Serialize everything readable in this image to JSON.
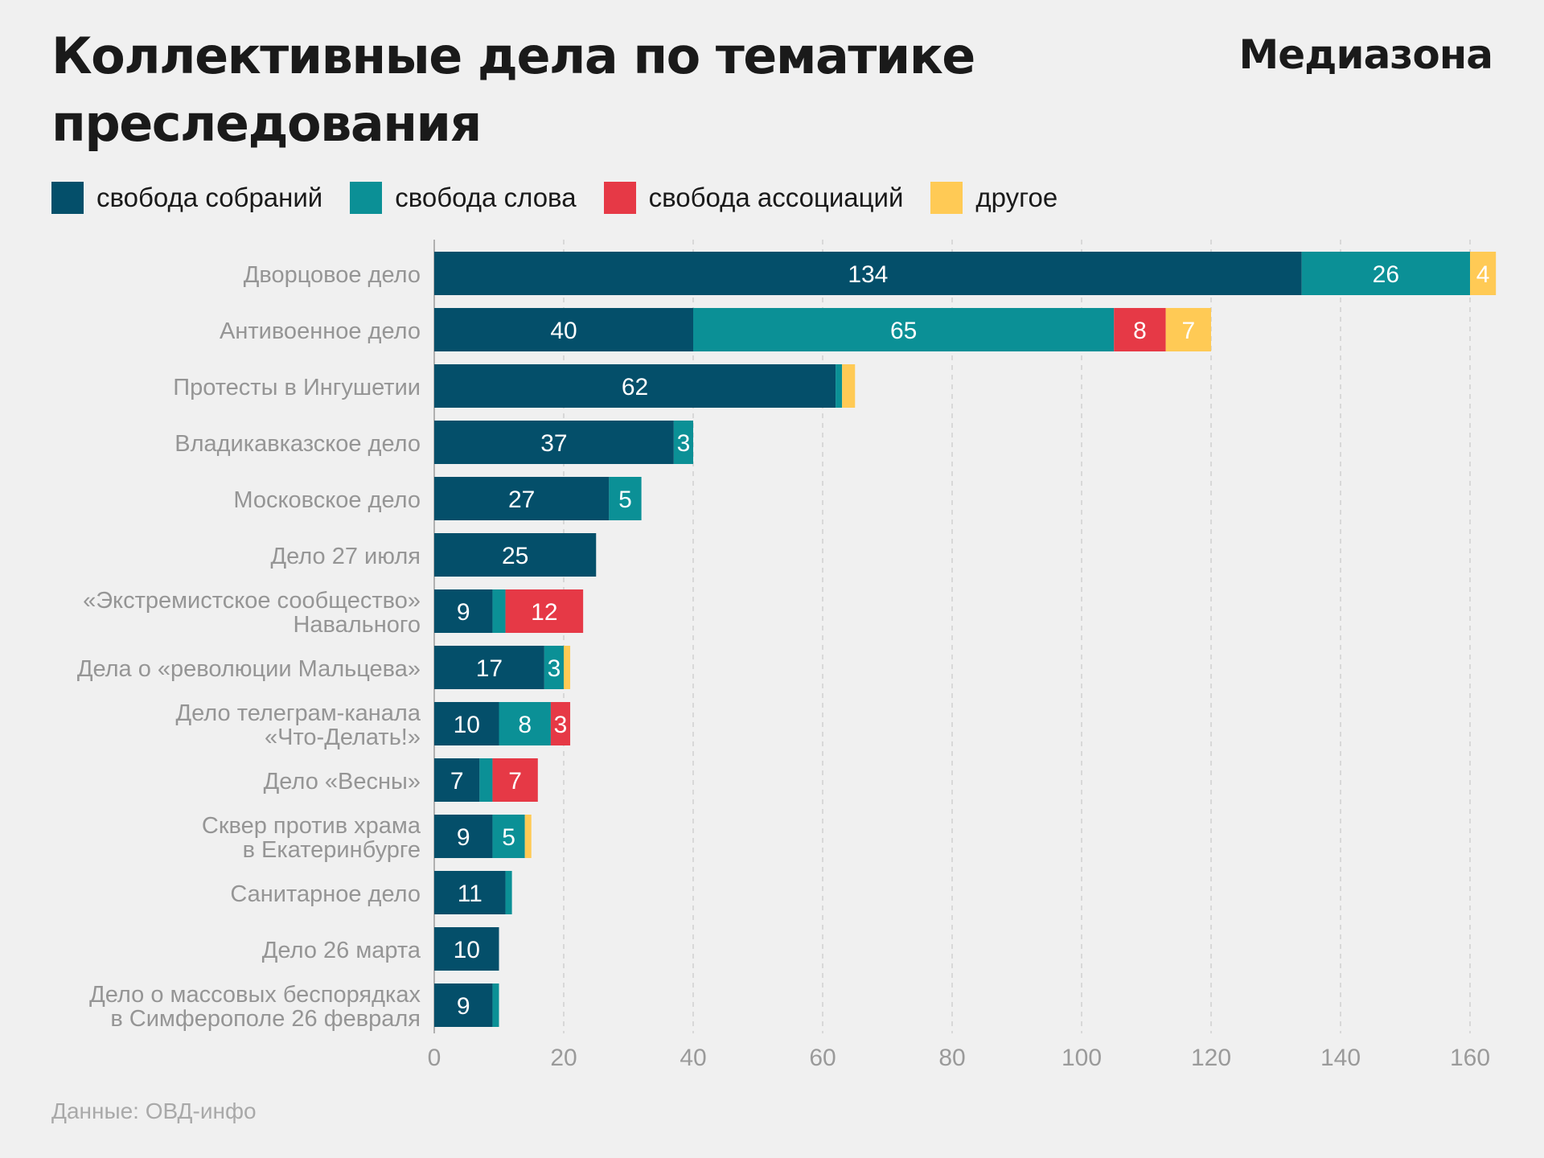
{
  "header": {
    "title": "Коллективные дела по тематике преследования",
    "brand": "Медиазона"
  },
  "footer": {
    "source": "Данные: ОВД-инфо"
  },
  "colors": {
    "background": "#f0f0f0",
    "assembly": "#044f6a",
    "speech": "#0b9096",
    "association": "#e63946",
    "other": "#ffca55",
    "grid": "#cfcfcf",
    "axis_text": "#9a9a9a"
  },
  "chart_data": {
    "type": "bar",
    "orientation": "horizontal",
    "stacked": true,
    "title": "Коллективные дела по тематике преследования",
    "xlim": [
      0,
      164
    ],
    "xticks": [
      0,
      20,
      40,
      60,
      80,
      100,
      120,
      140,
      160
    ],
    "grid": "vertical dashed",
    "legend_position": "top",
    "categories": [
      "Дворцовое дело",
      "Антивоенное дело",
      "Протесты в Ингушетии",
      "Владикавказское дело",
      "Московское дело",
      "Дело 27 июля",
      "«Экстремистское сообщество»\nНавального",
      "Дела о «революции Мальцева»",
      "Дело телеграм-канала\n«Что-Делать!»",
      "Дело «Весны»",
      "Сквер против храма\nв Екатеринбурге",
      "Санитарное дело",
      "Дело 26 марта",
      "Дело о массовых беспорядках\nв Симферополе 26 февраля"
    ],
    "series": [
      {
        "name": "свобода собраний",
        "color": "#044f6a",
        "values": [
          134,
          40,
          62,
          37,
          27,
          25,
          9,
          17,
          10,
          7,
          9,
          11,
          10,
          9
        ]
      },
      {
        "name": "свобода слова",
        "color": "#0b9096",
        "values": [
          26,
          65,
          1,
          3,
          5,
          0,
          2,
          3,
          8,
          2,
          5,
          1,
          0,
          1
        ]
      },
      {
        "name": "свобода ассоциаций",
        "color": "#e63946",
        "values": [
          0,
          8,
          0,
          0,
          0,
          0,
          12,
          0,
          3,
          7,
          0,
          0,
          0,
          0
        ]
      },
      {
        "name": "другое",
        "color": "#ffca55",
        "values": [
          4,
          7,
          2,
          0,
          0,
          0,
          0,
          1,
          0,
          0,
          1,
          0,
          0,
          0
        ]
      }
    ],
    "data_labels_min_value": 3
  }
}
